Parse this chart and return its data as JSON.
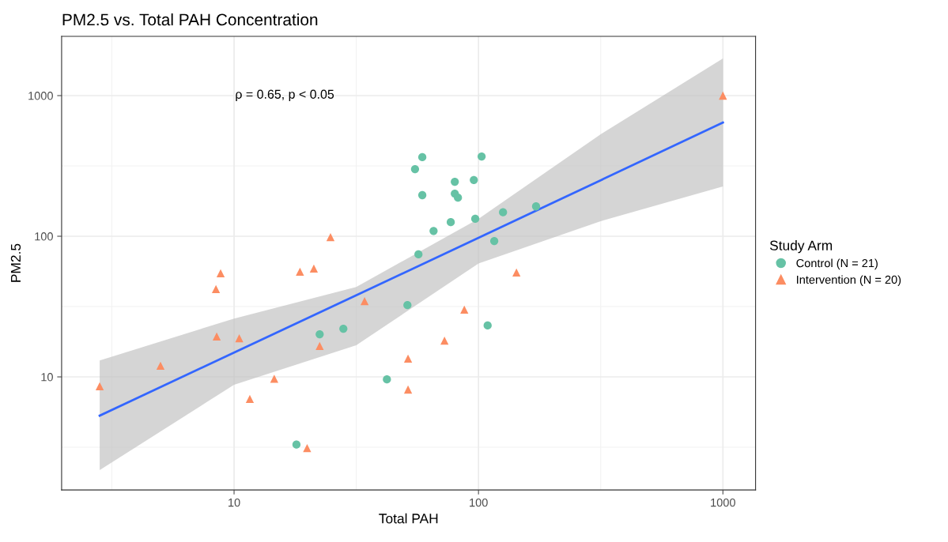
{
  "chart_data": {
    "type": "scatter",
    "title": "PM2.5 vs. Total PAH Concentration",
    "xlabel": "Total PAH",
    "ylabel": "PM2.5",
    "legend_title": "Study Arm",
    "legend": "right",
    "log": "xy",
    "grid": true,
    "xlim": [
      1.97,
      1360
    ],
    "ylim": [
      1.57,
      2640
    ],
    "xticks": [
      10,
      100,
      1000
    ],
    "yticks": [
      10,
      100,
      1000
    ],
    "annotations": [
      "ρ = 0.65, p < 0.05"
    ],
    "series": [
      {
        "name": "Control (N = 21)",
        "marker": "circle",
        "color": "#66c2a5",
        "x": [
          58.9,
          55,
          103,
          80,
          95.7,
          58.9,
          80,
          82.4,
          172,
          126,
          97,
          77,
          65.5,
          116,
          56.8,
          51.2,
          109,
          22.4,
          28,
          18.0,
          42.2
        ],
        "values": [
          365,
          300,
          369,
          244,
          251,
          196,
          201,
          188,
          163,
          148,
          133,
          126,
          109,
          92.5,
          74.3,
          32.4,
          23.2,
          20.1,
          22,
          3.3,
          9.6
        ]
      },
      {
        "name": "Intervention (N = 20)",
        "marker": "triangle",
        "color": "#fc8d62",
        "x": [
          2.82,
          5.0,
          8.43,
          8.81,
          8.49,
          10.5,
          11.6,
          14.6,
          18.6,
          21.2,
          24.8,
          22.4,
          19.9,
          34.2,
          51.5,
          51.5,
          72.6,
          87.5,
          143,
          1000
        ],
        "values": [
          8.57,
          12.0,
          42.1,
          54.5,
          19.4,
          18.8,
          6.97,
          9.7,
          55.9,
          58.9,
          98.6,
          16.6,
          3.12,
          34.6,
          13.5,
          8.13,
          18.1,
          30.1,
          55.2,
          1000
        ]
      },
      {
        "type": "line",
        "marker": "none",
        "color": "#3366ff",
        "x": [
          2.82,
          10,
          31.6,
          100,
          316,
          1000
        ],
        "values": [
          5.3,
          14.9,
          38,
          97.5,
          250,
          644
        ],
        "lower": [
          2.17,
          8.8,
          16.8,
          64,
          128,
          226
        ],
        "upper": [
          13.1,
          26,
          43.6,
          133,
          531,
          1837
        ]
      }
    ]
  }
}
